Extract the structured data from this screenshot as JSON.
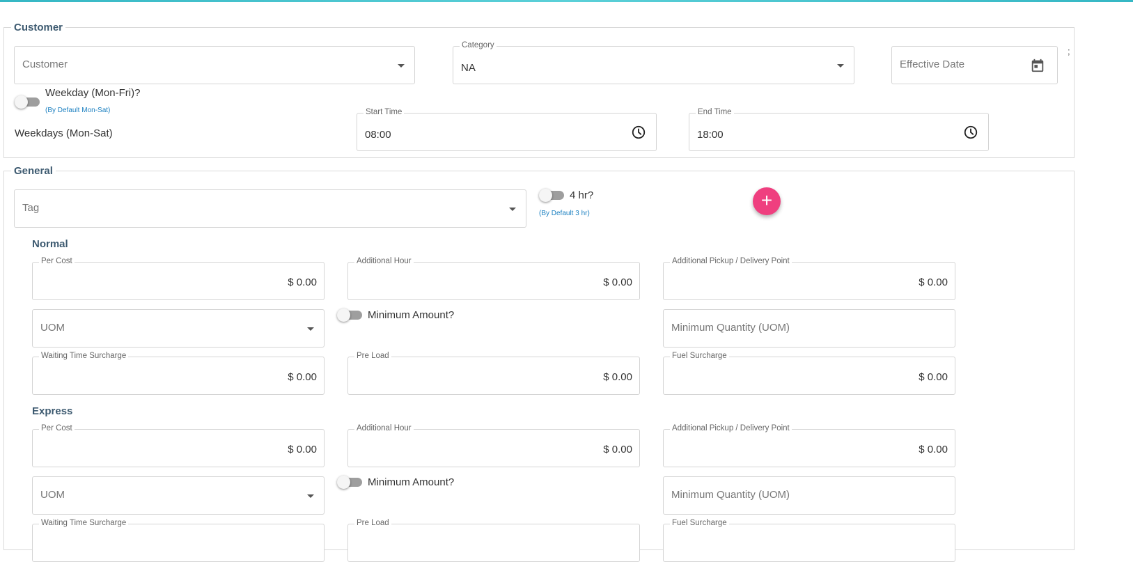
{
  "customer_section": {
    "legend": "Customer",
    "customer": {
      "placeholder": "Customer"
    },
    "category": {
      "label": "Category",
      "value": "NA"
    },
    "effective_date": {
      "placeholder": "Effective Date"
    },
    "overflow_mark": ";",
    "weekday_toggle": {
      "label": "Weekday (Mon-Fri)?",
      "hint": "(By Default Mon-Sat)"
    },
    "weekdays_text": "Weekdays (Mon-Sat)",
    "start_time": {
      "label": "Start Time",
      "value": "08:00"
    },
    "end_time": {
      "label": "End Time",
      "value": "18:00"
    }
  },
  "general_section": {
    "legend": "General",
    "tag": {
      "placeholder": "Tag"
    },
    "four_hr_toggle": {
      "label": "4 hr?",
      "hint": "(By Default 3 hr)"
    },
    "add_button": "+",
    "normal": {
      "title": "Normal",
      "per_cost": {
        "label": "Per Cost",
        "value": "$ 0.00"
      },
      "additional_hour": {
        "label": "Additional Hour",
        "value": "$ 0.00"
      },
      "additional_pickup": {
        "label": "Additional Pickup / Delivery Point",
        "value": "$ 0.00"
      },
      "uom": {
        "placeholder": "UOM"
      },
      "minimum_amount": {
        "label": "Minimum Amount?"
      },
      "minimum_quantity": {
        "placeholder": "Minimum Quantity (UOM)"
      },
      "waiting_time": {
        "label": "Waiting Time Surcharge",
        "value": "$ 0.00"
      },
      "pre_load": {
        "label": "Pre Load",
        "value": "$ 0.00"
      },
      "fuel_surcharge": {
        "label": "Fuel Surcharge",
        "value": "$ 0.00"
      }
    },
    "express": {
      "title": "Express",
      "per_cost": {
        "label": "Per Cost",
        "value": "$ 0.00"
      },
      "additional_hour": {
        "label": "Additional Hour",
        "value": "$ 0.00"
      },
      "additional_pickup": {
        "label": "Additional Pickup / Delivery Point",
        "value": "$ 0.00"
      },
      "uom": {
        "placeholder": "UOM"
      },
      "minimum_amount": {
        "label": "Minimum Amount?"
      },
      "minimum_quantity": {
        "placeholder": "Minimum Quantity (UOM)"
      },
      "waiting_time": {
        "label": "Waiting Time Surcharge"
      },
      "pre_load": {
        "label": "Pre Load"
      },
      "fuel_surcharge": {
        "label": "Fuel Surcharge"
      }
    }
  },
  "colors": {
    "accent": "#35b7c4",
    "fab": "#ef3f7f",
    "section_title": "#3d5a70",
    "hint": "#1a7fc0"
  },
  "icons": [
    "chevron-down-icon",
    "calendar-icon",
    "clock-icon",
    "plus-icon"
  ]
}
